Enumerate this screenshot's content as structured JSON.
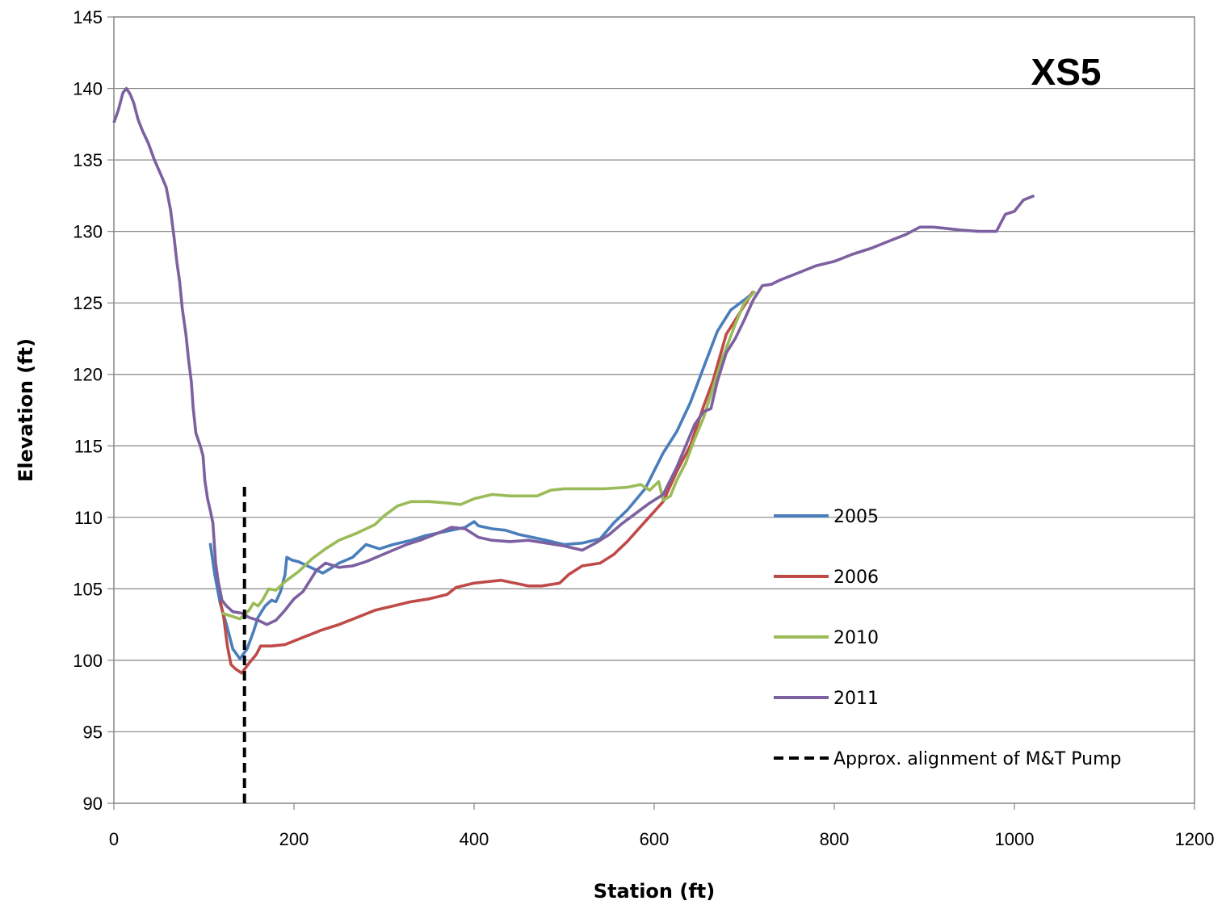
{
  "chart_data": {
    "type": "line",
    "title": "XS5",
    "xlabel": "Station (ft)",
    "ylabel": "Elevation (ft)",
    "xlim": [
      0,
      1200
    ],
    "ylim": [
      90,
      145
    ],
    "xticks": [
      "0",
      "200",
      "400",
      "600",
      "800",
      "1000",
      "1200"
    ],
    "yticks": [
      "90",
      "95",
      "100",
      "105",
      "110",
      "115",
      "120",
      "125",
      "130",
      "135",
      "140",
      "145"
    ],
    "grid": "horizontal",
    "legend_position": "right",
    "series": [
      {
        "name": "2005",
        "color": "#4a7ebb",
        "style": "solid",
        "points": [
          [
            107,
            108.2
          ],
          [
            112,
            106
          ],
          [
            118,
            104
          ],
          [
            125,
            102.5
          ],
          [
            132,
            100.8
          ],
          [
            140,
            100.1
          ],
          [
            148,
            100.8
          ],
          [
            155,
            102
          ],
          [
            160,
            103
          ],
          [
            168,
            103.8
          ],
          [
            175,
            104.2
          ],
          [
            180,
            104.1
          ],
          [
            185,
            104.8
          ],
          [
            190,
            106
          ],
          [
            192,
            107.2
          ],
          [
            198,
            107
          ],
          [
            205,
            106.9
          ],
          [
            215,
            106.6
          ],
          [
            225,
            106.3
          ],
          [
            232,
            106.1
          ],
          [
            240,
            106.4
          ],
          [
            250,
            106.8
          ],
          [
            265,
            107.2
          ],
          [
            280,
            108.1
          ],
          [
            295,
            107.8
          ],
          [
            310,
            108.1
          ],
          [
            330,
            108.4
          ],
          [
            345,
            108.7
          ],
          [
            360,
            108.9
          ],
          [
            375,
            109.1
          ],
          [
            390,
            109.3
          ],
          [
            400,
            109.7
          ],
          [
            405,
            109.4
          ],
          [
            420,
            109.2
          ],
          [
            435,
            109.1
          ],
          [
            450,
            108.8
          ],
          [
            465,
            108.6
          ],
          [
            480,
            108.4
          ],
          [
            500,
            108.1
          ],
          [
            520,
            108.2
          ],
          [
            540,
            108.5
          ],
          [
            555,
            109.6
          ],
          [
            570,
            110.5
          ],
          [
            590,
            112
          ],
          [
            610,
            114.5
          ],
          [
            625,
            116
          ],
          [
            640,
            118
          ],
          [
            655,
            120.5
          ],
          [
            670,
            123
          ],
          [
            685,
            124.5
          ],
          [
            700,
            125.2
          ],
          [
            712,
            125.8
          ]
        ]
      },
      {
        "name": "2006",
        "color": "#be4b48",
        "style": "solid",
        "points": [
          [
            118,
            104.2
          ],
          [
            122,
            103
          ],
          [
            126,
            101
          ],
          [
            130,
            99.7
          ],
          [
            135,
            99.4
          ],
          [
            142,
            99.1
          ],
          [
            150,
            99.8
          ],
          [
            158,
            100.4
          ],
          [
            163,
            101
          ],
          [
            175,
            101
          ],
          [
            190,
            101.1
          ],
          [
            210,
            101.6
          ],
          [
            230,
            102.1
          ],
          [
            250,
            102.5
          ],
          [
            270,
            103
          ],
          [
            290,
            103.5
          ],
          [
            310,
            103.8
          ],
          [
            330,
            104.1
          ],
          [
            350,
            104.3
          ],
          [
            370,
            104.6
          ],
          [
            380,
            105.1
          ],
          [
            400,
            105.4
          ],
          [
            415,
            105.5
          ],
          [
            430,
            105.6
          ],
          [
            445,
            105.4
          ],
          [
            460,
            105.2
          ],
          [
            475,
            105.2
          ],
          [
            495,
            105.4
          ],
          [
            505,
            106
          ],
          [
            520,
            106.6
          ],
          [
            540,
            106.8
          ],
          [
            555,
            107.4
          ],
          [
            570,
            108.3
          ],
          [
            590,
            109.7
          ],
          [
            610,
            111.1
          ],
          [
            625,
            113.2
          ],
          [
            640,
            115
          ],
          [
            655,
            117.8
          ],
          [
            665,
            119.5
          ],
          [
            680,
            122.8
          ],
          [
            695,
            124.3
          ],
          [
            710,
            125.8
          ]
        ]
      },
      {
        "name": "2010",
        "color": "#9bbb59",
        "style": "solid",
        "points": [
          [
            120,
            103.3
          ],
          [
            130,
            103.1
          ],
          [
            140,
            102.9
          ],
          [
            150,
            103.5
          ],
          [
            155,
            104
          ],
          [
            160,
            103.8
          ],
          [
            165,
            104.2
          ],
          [
            172,
            105
          ],
          [
            180,
            104.9
          ],
          [
            190,
            105.5
          ],
          [
            205,
            106.2
          ],
          [
            220,
            107.1
          ],
          [
            235,
            107.8
          ],
          [
            250,
            108.4
          ],
          [
            270,
            108.9
          ],
          [
            290,
            109.5
          ],
          [
            300,
            110.1
          ],
          [
            315,
            110.8
          ],
          [
            330,
            111.1
          ],
          [
            350,
            111.1
          ],
          [
            370,
            111
          ],
          [
            385,
            110.9
          ],
          [
            400,
            111.3
          ],
          [
            420,
            111.6
          ],
          [
            440,
            111.5
          ],
          [
            470,
            111.5
          ],
          [
            485,
            111.9
          ],
          [
            500,
            112
          ],
          [
            530,
            112
          ],
          [
            545,
            112
          ],
          [
            570,
            112.1
          ],
          [
            585,
            112.3
          ],
          [
            595,
            111.9
          ],
          [
            605,
            112.5
          ],
          [
            610,
            111.2
          ],
          [
            618,
            111.5
          ],
          [
            625,
            112.6
          ],
          [
            635,
            113.8
          ],
          [
            645,
            115.5
          ],
          [
            655,
            117
          ],
          [
            665,
            119
          ],
          [
            675,
            121
          ],
          [
            690,
            123.5
          ],
          [
            700,
            125
          ],
          [
            712,
            125.8
          ]
        ]
      },
      {
        "name": "2011",
        "color": "#7d60a0",
        "style": "solid",
        "points": [
          [
            0,
            137.6
          ],
          [
            5,
            138.5
          ],
          [
            10,
            139.7
          ],
          [
            14,
            140
          ],
          [
            18,
            139.6
          ],
          [
            22,
            139
          ],
          [
            27,
            137.8
          ],
          [
            32,
            137
          ],
          [
            38,
            136.2
          ],
          [
            45,
            135
          ],
          [
            52,
            134
          ],
          [
            58,
            133.1
          ],
          [
            63,
            131.5
          ],
          [
            67,
            129.5
          ],
          [
            70,
            127.8
          ],
          [
            73,
            126.5
          ],
          [
            76,
            124.6
          ],
          [
            80,
            122.8
          ],
          [
            83,
            121
          ],
          [
            86,
            119.5
          ],
          [
            88,
            117.7
          ],
          [
            91,
            115.9
          ],
          [
            96,
            115
          ],
          [
            99,
            114.3
          ],
          [
            101,
            112.6
          ],
          [
            104,
            111.3
          ],
          [
            107,
            110.5
          ],
          [
            110,
            109.6
          ],
          [
            113,
            106.8
          ],
          [
            116,
            105.5
          ],
          [
            120,
            104.2
          ],
          [
            125,
            103.8
          ],
          [
            132,
            103.4
          ],
          [
            142,
            103.3
          ],
          [
            150,
            103
          ],
          [
            160,
            102.8
          ],
          [
            170,
            102.5
          ],
          [
            180,
            102.8
          ],
          [
            190,
            103.5
          ],
          [
            200,
            104.3
          ],
          [
            210,
            104.8
          ],
          [
            218,
            105.6
          ],
          [
            225,
            106.3
          ],
          [
            235,
            106.8
          ],
          [
            250,
            106.5
          ],
          [
            265,
            106.6
          ],
          [
            280,
            106.9
          ],
          [
            295,
            107.3
          ],
          [
            310,
            107.7
          ],
          [
            325,
            108.1
          ],
          [
            340,
            108.4
          ],
          [
            360,
            108.9
          ],
          [
            375,
            109.3
          ],
          [
            390,
            109.2
          ],
          [
            405,
            108.6
          ],
          [
            420,
            108.4
          ],
          [
            440,
            108.3
          ],
          [
            460,
            108.4
          ],
          [
            480,
            108.2
          ],
          [
            500,
            108
          ],
          [
            520,
            107.7
          ],
          [
            535,
            108.2
          ],
          [
            550,
            108.8
          ],
          [
            565,
            109.6
          ],
          [
            580,
            110.3
          ],
          [
            595,
            111
          ],
          [
            610,
            111.6
          ],
          [
            625,
            113.5
          ],
          [
            635,
            115
          ],
          [
            645,
            116.5
          ],
          [
            655,
            117.4
          ],
          [
            663,
            117.6
          ],
          [
            670,
            119.5
          ],
          [
            680,
            121.5
          ],
          [
            690,
            122.5
          ],
          [
            700,
            123.8
          ],
          [
            710,
            125.2
          ],
          [
            720,
            126.2
          ],
          [
            730,
            126.3
          ],
          [
            740,
            126.6
          ],
          [
            760,
            127.1
          ],
          [
            780,
            127.6
          ],
          [
            800,
            127.9
          ],
          [
            820,
            128.4
          ],
          [
            840,
            128.8
          ],
          [
            860,
            129.3
          ],
          [
            880,
            129.8
          ],
          [
            895,
            130.3
          ],
          [
            910,
            130.3
          ],
          [
            925,
            130.2
          ],
          [
            940,
            130.1
          ],
          [
            960,
            130
          ],
          [
            980,
            130
          ],
          [
            990,
            131.2
          ],
          [
            1000,
            131.4
          ],
          [
            1010,
            132.2
          ],
          [
            1022,
            132.5
          ]
        ]
      },
      {
        "name": "Approx. alignment of M&T Pump",
        "color": "#000000",
        "style": "dashed",
        "points": [
          [
            145,
            90
          ],
          [
            145,
            112.5
          ]
        ]
      }
    ]
  }
}
